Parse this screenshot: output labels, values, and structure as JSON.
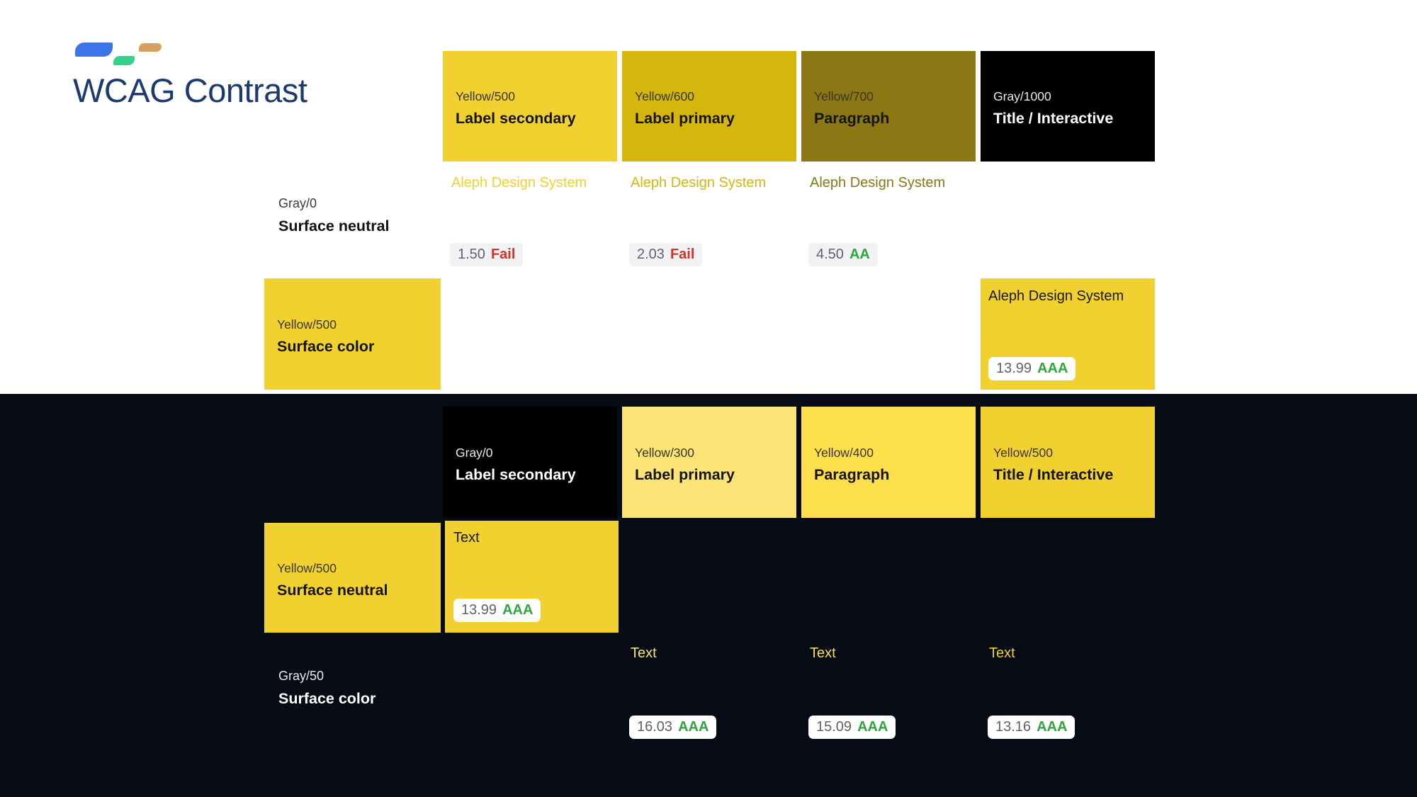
{
  "app": {
    "title": "WCAG Contrast"
  },
  "logo": {
    "name": "aleph-logo"
  },
  "palette": {
    "yellow_300": "#FCE576",
    "yellow_400": "#FDDF4C",
    "yellow_500": "#F1D12F",
    "yellow_600": "#D4B60D",
    "yellow_700": "#8B7714",
    "gray_0": "#FFFFFF",
    "gray_50": "#060B16",
    "gray_1000": "#000000",
    "fail_red": "#D93025",
    "pass_green": "#2EA63B",
    "title_navy": "#1D3A6E"
  },
  "light_board": {
    "surface_neutral": {
      "token": "Gray/0",
      "role": "Surface neutral"
    },
    "headers": [
      {
        "token": "Yellow/500",
        "role": "Label secondary"
      },
      {
        "token": "Yellow/600",
        "role": "Label primary"
      },
      {
        "token": "Yellow/700",
        "role": "Paragraph"
      },
      {
        "token": "Gray/1000",
        "role": "Title / Interactive"
      }
    ],
    "samples": [
      "Aleph Design System",
      "Aleph Design System",
      "Aleph Design System"
    ],
    "ratings": [
      {
        "ratio": "1.50",
        "level": "Fail"
      },
      {
        "ratio": "2.03",
        "level": "Fail"
      },
      {
        "ratio": "4.50",
        "level": "AA"
      }
    ],
    "surface_swatch": {
      "token": "Yellow/500",
      "role": "Surface color"
    },
    "result": {
      "sample": "Aleph Design System",
      "ratio": "13.99",
      "level": "AAA"
    }
  },
  "dark_board": {
    "headers": [
      {
        "token": "Gray/0",
        "role": "Label secondary"
      },
      {
        "token": "Yellow/300",
        "role": "Label primary"
      },
      {
        "token": "Yellow/400",
        "role": "Paragraph"
      },
      {
        "token": "Yellow/500",
        "role": "Title / Interactive"
      }
    ],
    "surface_neutral_swatch": {
      "token": "Yellow/500",
      "role": "Surface neutral"
    },
    "result": {
      "sample": "Text",
      "ratio": "13.99",
      "level": "AAA"
    },
    "surface_color": {
      "token": "Gray/50",
      "role": "Surface color"
    },
    "samples": [
      "Text",
      "Text",
      "Text"
    ],
    "ratings": [
      {
        "ratio": "16.03",
        "level": "AAA"
      },
      {
        "ratio": "15.09",
        "level": "AAA"
      },
      {
        "ratio": "13.16",
        "level": "AAA"
      }
    ]
  }
}
